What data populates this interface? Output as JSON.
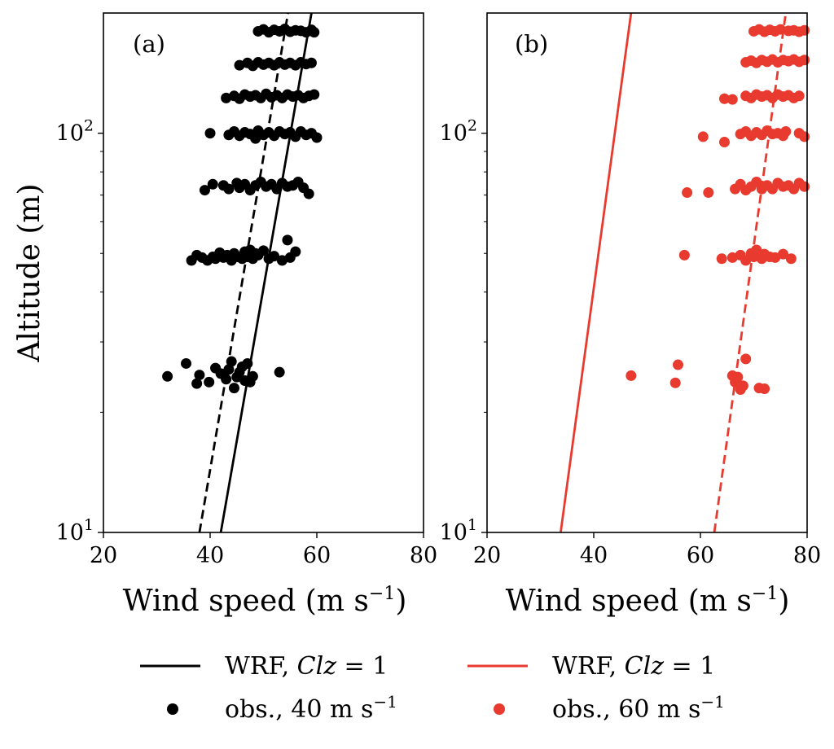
{
  "chart_data": [
    {
      "type": "scatter",
      "panel_label": "(a)",
      "xlabel": "Wind speed (m s",
      "xlabel_sup": "−1",
      "xlabel_close": ")",
      "ylabel": "Altitude (m)",
      "xlim": [
        20,
        80
      ],
      "ylim": [
        10,
        200
      ],
      "yscale": "log",
      "xticks": [
        20,
        40,
        60,
        80
      ],
      "xtick_labels": [
        "20",
        "40",
        "60",
        "80"
      ],
      "yticks": [
        10,
        100
      ],
      "ytick_labels": [
        {
          "base": "10",
          "exp": "1"
        },
        {
          "base": "10",
          "exp": "2"
        }
      ],
      "color": "#000000",
      "series": [
        {
          "style": "solid",
          "points": [
            [
              42.0,
              10
            ],
            [
              59.0,
              200
            ]
          ]
        },
        {
          "style": "dashed",
          "points": [
            [
              38.0,
              10
            ],
            [
              54.6,
              200
            ]
          ]
        },
        {
          "style": "markers",
          "points": [
            [
              32.0,
              24.6
            ],
            [
              35.5,
              26.5
            ],
            [
              37.5,
              23.6
            ],
            [
              38.0,
              24.8
            ],
            [
              39.8,
              23.8
            ],
            [
              41.0,
              25.8
            ],
            [
              42.0,
              25.0
            ],
            [
              43.0,
              24.2
            ],
            [
              43.5,
              25.6
            ],
            [
              44.0,
              26.8
            ],
            [
              44.5,
              23.0
            ],
            [
              45.0,
              24.5
            ],
            [
              45.5,
              25.2
            ],
            [
              46.0,
              26.0
            ],
            [
              46.5,
              24.0
            ],
            [
              47.0,
              26.5
            ],
            [
              47.5,
              23.8
            ],
            [
              48.0,
              24.6
            ],
            [
              53.0,
              25.2
            ],
            [
              36.5,
              48.0
            ],
            [
              37.5,
              49.5
            ],
            [
              38.5,
              48.8
            ],
            [
              39.5,
              48.0
            ],
            [
              40.5,
              49.0
            ],
            [
              41.0,
              48.5
            ],
            [
              41.8,
              50.2
            ],
            [
              42.5,
              48.8
            ],
            [
              43.2,
              49.5
            ],
            [
              44.0,
              48.0
            ],
            [
              44.5,
              50.0
            ],
            [
              45.2,
              49.0
            ],
            [
              46.0,
              48.5
            ],
            [
              46.5,
              50.5
            ],
            [
              47.0,
              49.0
            ],
            [
              47.5,
              51.0
            ],
            [
              48.0,
              48.5
            ],
            [
              48.5,
              50.0
            ],
            [
              49.0,
              49.5
            ],
            [
              50.0,
              50.8
            ],
            [
              51.0,
              48.5
            ],
            [
              52.0,
              49.2
            ],
            [
              53.5,
              48.0
            ],
            [
              54.5,
              54.0
            ],
            [
              55.0,
              48.8
            ],
            [
              56.0,
              50.5
            ],
            [
              39.0,
              72.0
            ],
            [
              40.5,
              74.5
            ],
            [
              42.5,
              74.0
            ],
            [
              43.5,
              72.5
            ],
            [
              45.0,
              75.0
            ],
            [
              45.5,
              73.0
            ],
            [
              46.5,
              74.5
            ],
            [
              47.5,
              72.0
            ],
            [
              48.5,
              74.0
            ],
            [
              49.5,
              75.5
            ],
            [
              50.5,
              73.5
            ],
            [
              51.5,
              74.5
            ],
            [
              52.5,
              72.5
            ],
            [
              53.5,
              75.0
            ],
            [
              54.5,
              73.5
            ],
            [
              55.5,
              74.0
            ],
            [
              56.5,
              75.5
            ],
            [
              57.5,
              73.0
            ],
            [
              58.5,
              70.5
            ],
            [
              40.0,
              100.0
            ],
            [
              43.5,
              99.0
            ],
            [
              44.5,
              101.0
            ],
            [
              45.5,
              98.5
            ],
            [
              46.5,
              100.5
            ],
            [
              47.5,
              99.5
            ],
            [
              48.5,
              97.0
            ],
            [
              49.0,
              101.5
            ],
            [
              50.0,
              99.0
            ],
            [
              51.0,
              100.5
            ],
            [
              52.0,
              98.5
            ],
            [
              53.0,
              101.0
            ],
            [
              54.0,
              99.5
            ],
            [
              55.0,
              100.5
            ],
            [
              56.0,
              98.0
            ],
            [
              57.0,
              101.0
            ],
            [
              58.0,
              99.0
            ],
            [
              59.0,
              100.0
            ],
            [
              60.0,
              97.5
            ],
            [
              43.0,
              122.5
            ],
            [
              44.5,
              124.0
            ],
            [
              45.5,
              122.0
            ],
            [
              46.5,
              125.0
            ],
            [
              47.5,
              123.5
            ],
            [
              48.5,
              124.5
            ],
            [
              49.5,
              122.5
            ],
            [
              50.5,
              125.5
            ],
            [
              51.5,
              123.0
            ],
            [
              52.5,
              124.5
            ],
            [
              53.5,
              122.5
            ],
            [
              54.5,
              125.0
            ],
            [
              55.5,
              123.5
            ],
            [
              56.5,
              124.5
            ],
            [
              57.5,
              122.5
            ],
            [
              58.5,
              124.0
            ],
            [
              59.5,
              125.0
            ],
            [
              45.5,
              148.0
            ],
            [
              47.0,
              150.0
            ],
            [
              48.0,
              147.5
            ],
            [
              49.0,
              150.5
            ],
            [
              50.0,
              148.5
            ],
            [
              51.0,
              150.0
            ],
            [
              52.0,
              148.0
            ],
            [
              53.0,
              150.5
            ],
            [
              54.0,
              148.5
            ],
            [
              55.0,
              150.0
            ],
            [
              56.0,
              148.0
            ],
            [
              57.0,
              150.5
            ],
            [
              58.0,
              149.0
            ],
            [
              59.0,
              150.0
            ],
            [
              49.0,
              180.0
            ],
            [
              50.0,
              182.0
            ],
            [
              51.0,
              179.0
            ],
            [
              52.0,
              181.5
            ],
            [
              53.0,
              180.0
            ],
            [
              54.0,
              182.5
            ],
            [
              55.0,
              179.5
            ],
            [
              56.0,
              181.0
            ],
            [
              57.0,
              180.5
            ],
            [
              58.0,
              179.0
            ],
            [
              59.0,
              181.5
            ],
            [
              59.5,
              179.0
            ]
          ]
        }
      ]
    },
    {
      "type": "scatter",
      "panel_label": "(b)",
      "xlabel": "Wind speed (m s",
      "xlabel_sup": "−1",
      "xlabel_close": ")",
      "xlim": [
        20,
        80
      ],
      "ylim": [
        10,
        200
      ],
      "yscale": "log",
      "xticks": [
        20,
        40,
        60,
        80
      ],
      "xtick_labels": [
        "20",
        "40",
        "60",
        "80"
      ],
      "yticks": [
        10,
        100
      ],
      "ytick_labels": [
        {
          "base": "10",
          "exp": "1"
        },
        {
          "base": "10",
          "exp": "2"
        }
      ],
      "color": "#e83a2e",
      "series": [
        {
          "style": "solid",
          "points": [
            [
              33.8,
              10
            ],
            [
              47.0,
              200
            ]
          ]
        },
        {
          "style": "dashed",
          "points": [
            [
              62.6,
              10
            ],
            [
              76.0,
              200
            ]
          ]
        },
        {
          "style": "markers",
          "points": [
            [
              47.0,
              24.7
            ],
            [
              55.3,
              23.7
            ],
            [
              55.8,
              26.3
            ],
            [
              66.0,
              24.7
            ],
            [
              66.5,
              23.8
            ],
            [
              67.0,
              24.5
            ],
            [
              67.5,
              22.8
            ],
            [
              68.0,
              23.3
            ],
            [
              68.5,
              27.2
            ],
            [
              71.0,
              23.0
            ],
            [
              72.0,
              22.9
            ],
            [
              57.0,
              49.5
            ],
            [
              64.0,
              48.5
            ],
            [
              66.0,
              48.8
            ],
            [
              67.5,
              49.5
            ],
            [
              68.5,
              48.0
            ],
            [
              69.5,
              50.0
            ],
            [
              70.0,
              49.0
            ],
            [
              70.5,
              51.0
            ],
            [
              71.0,
              49.5
            ],
            [
              71.5,
              48.5
            ],
            [
              72.0,
              49.8
            ],
            [
              73.0,
              49.0
            ],
            [
              74.0,
              48.8
            ],
            [
              75.5,
              49.8
            ],
            [
              77.0,
              48.5
            ],
            [
              57.5,
              71.0
            ],
            [
              61.5,
              71.0
            ],
            [
              66.5,
              72.5
            ],
            [
              67.5,
              74.5
            ],
            [
              68.5,
              72.0
            ],
            [
              69.5,
              73.5
            ],
            [
              70.5,
              75.5
            ],
            [
              71.5,
              72.5
            ],
            [
              72.5,
              74.0
            ],
            [
              73.5,
              72.5
            ],
            [
              74.5,
              75.0
            ],
            [
              75.5,
              73.5
            ],
            [
              76.5,
              74.0
            ],
            [
              77.5,
              72.5
            ],
            [
              78.5,
              75.0
            ],
            [
              79.5,
              73.5
            ],
            [
              60.5,
              98.0
            ],
            [
              64.5,
              95.0
            ],
            [
              67.5,
              99.5
            ],
            [
              68.5,
              101.0
            ],
            [
              69.5,
              98.5
            ],
            [
              70.5,
              100.5
            ],
            [
              71.5,
              99.0
            ],
            [
              72.5,
              101.5
            ],
            [
              73.5,
              99.5
            ],
            [
              74.5,
              100.0
            ],
            [
              75.5,
              98.5
            ],
            [
              76.0,
              101.0
            ],
            [
              78.5,
              100.0
            ],
            [
              79.5,
              98.0
            ],
            [
              64.5,
              122.0
            ],
            [
              66.0,
              121.5
            ],
            [
              68.5,
              124.0
            ],
            [
              69.5,
              122.5
            ],
            [
              70.5,
              125.0
            ],
            [
              71.5,
              123.5
            ],
            [
              72.5,
              124.5
            ],
            [
              73.5,
              122.5
            ],
            [
              74.5,
              125.0
            ],
            [
              75.5,
              123.5
            ],
            [
              76.5,
              124.5
            ],
            [
              77.5,
              122.5
            ],
            [
              78.5,
              124.0
            ],
            [
              68.5,
              150.5
            ],
            [
              69.5,
              152.0
            ],
            [
              70.5,
              150.0
            ],
            [
              71.5,
              152.5
            ],
            [
              72.5,
              151.0
            ],
            [
              73.5,
              153.0
            ],
            [
              74.5,
              150.5
            ],
            [
              75.5,
              152.5
            ],
            [
              76.5,
              151.5
            ],
            [
              77.5,
              153.0
            ],
            [
              78.5,
              151.0
            ],
            [
              79.5,
              152.5
            ],
            [
              70.0,
              180.0
            ],
            [
              71.0,
              182.0
            ],
            [
              72.0,
              179.5
            ],
            [
              73.0,
              181.5
            ],
            [
              74.0,
              180.0
            ],
            [
              75.0,
              182.0
            ],
            [
              76.5,
              180.5
            ],
            [
              77.5,
              181.0
            ],
            [
              78.5,
              179.5
            ],
            [
              79.5,
              181.0
            ]
          ]
        }
      ]
    }
  ],
  "legend": {
    "items": [
      {
        "kind": "line",
        "color": "#000000",
        "prefix": "WRF, ",
        "italic": "Clz",
        "suffix": " = 1"
      },
      {
        "kind": "line",
        "color": "#e83a2e",
        "prefix": "WRF, ",
        "italic": "Clz",
        "suffix": " = 1"
      },
      {
        "kind": "marker",
        "color": "#000000",
        "prefix": "obs., 40 m s",
        "sup": "−1"
      },
      {
        "kind": "marker",
        "color": "#e83a2e",
        "prefix": "obs., 60 m s",
        "sup": "−1"
      }
    ]
  }
}
